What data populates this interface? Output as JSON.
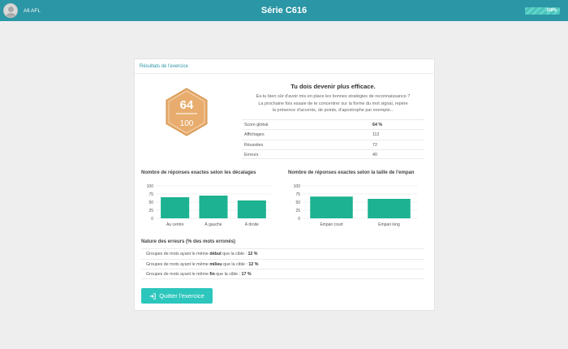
{
  "header": {
    "username": "Afi AFL",
    "title": "Série C616",
    "progress_label": "100%",
    "progress_fraction": 1.0
  },
  "card": {
    "title": "Résultats de l'exercice",
    "score": "64",
    "score_total": "100",
    "message_title": "Tu dois devenir plus efficace.",
    "message_lines": [
      "Es-tu bien sûr d'avoir mis en place les bonnes stratégies de reconnaissance ?",
      "La prochaine fois essaie de te concentrer sur la forme du mot signal, repère",
      "la présence d'accents, de points, d'apostrophe par exemple..."
    ],
    "stats": [
      {
        "label": "Score global",
        "value": "64 %"
      },
      {
        "label": "Affichages",
        "value": "112"
      },
      {
        "label": "Réussites",
        "value": "72"
      },
      {
        "label": "Erreurs",
        "value": "40"
      }
    ],
    "errors_title": "Nature des erreurs (% des mots erronés)",
    "errors": [
      {
        "before": "Groupes de mots ayant le même ",
        "key": "début",
        "after": " que la cible : ",
        "value": "12 %"
      },
      {
        "before": "Groupes de mots ayant le même ",
        "key": "milieu",
        "after": " que la cible : ",
        "value": "12 %"
      },
      {
        "before": "Groupes de mots ayant le même ",
        "key": "fin",
        "after": " que la cible : ",
        "value": "17 %"
      }
    ],
    "quit_label": "Quitter l'exercice"
  },
  "colors": {
    "header": "#2b96a5",
    "hexagon": "#e8ad6e",
    "bar": "#1db291",
    "button": "#2cc6bd"
  },
  "chart_data": [
    {
      "type": "bar",
      "title": "Nombre de réponses exactes selon les décalages",
      "categories": [
        "Au centre",
        "À gauche",
        "À droite"
      ],
      "values": [
        65,
        70,
        55
      ],
      "yticks": [
        0,
        25,
        50,
        75,
        100
      ],
      "ylim": [
        0,
        100
      ],
      "grid": true
    },
    {
      "type": "bar",
      "title": "Nombre de réponses exactes selon la taille de l'empan",
      "categories": [
        "Empan court",
        "Empan long"
      ],
      "values": [
        67,
        60
      ],
      "yticks": [
        0,
        25,
        50,
        75,
        100
      ],
      "ylim": [
        0,
        100
      ],
      "grid": true
    }
  ]
}
